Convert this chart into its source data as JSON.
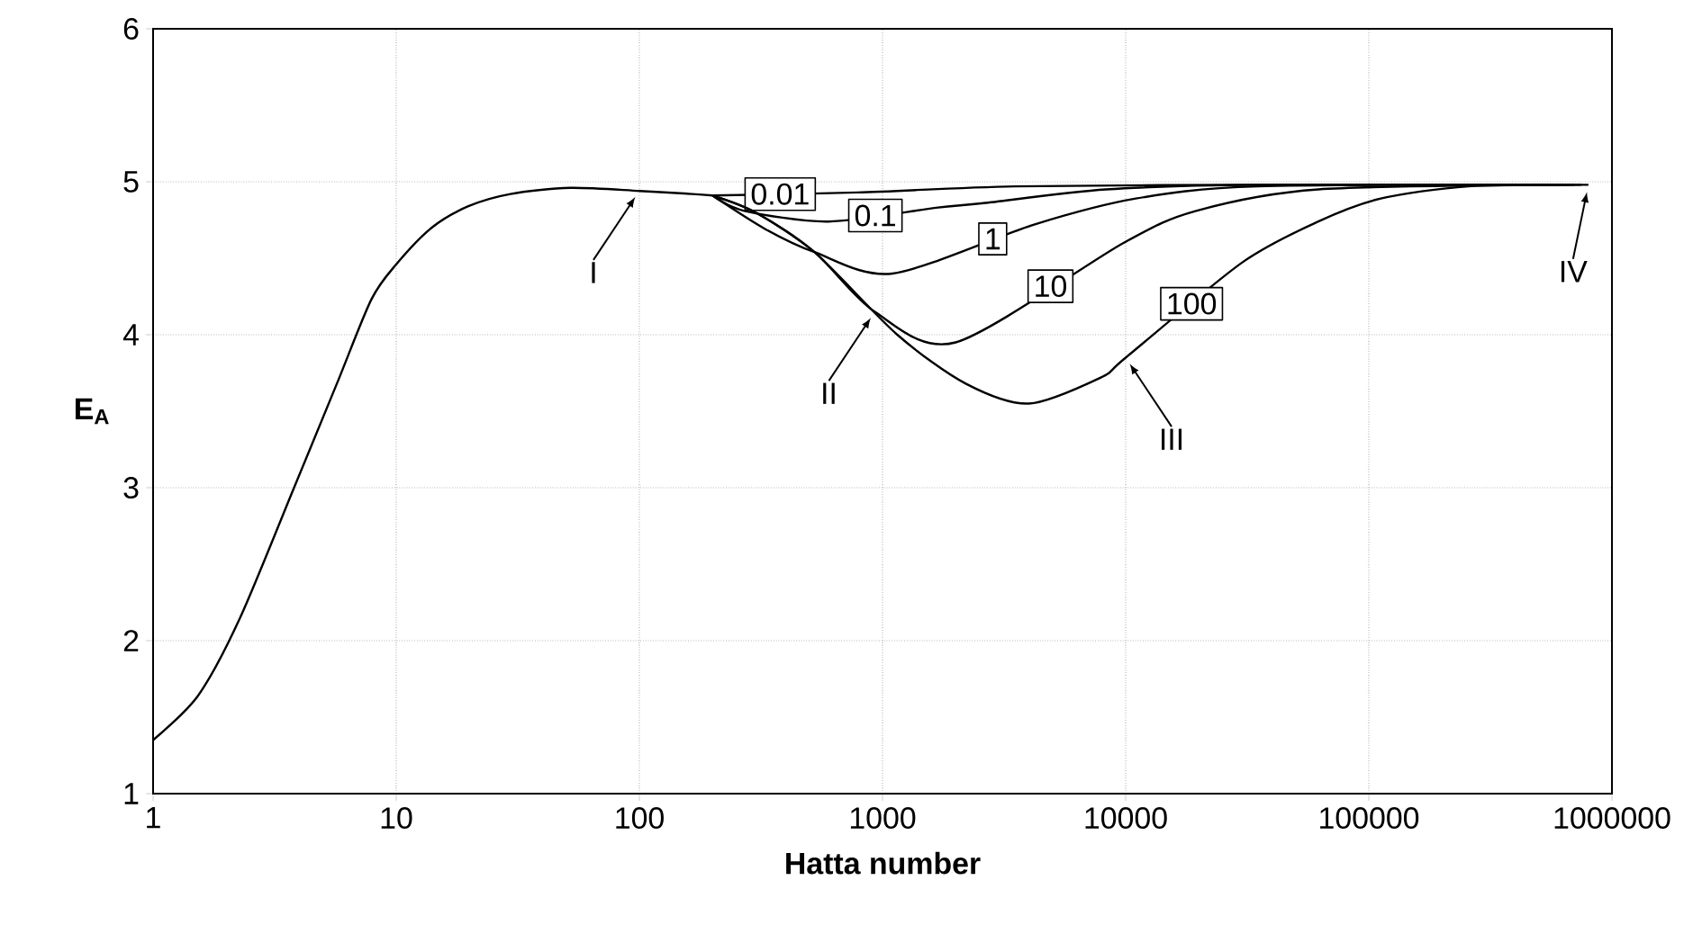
{
  "chart_data": {
    "type": "line",
    "xlabel": "**Hatta number**",
    "ylabel": "**E$_{A}$**",
    "log": "x",
    "grid": true,
    "marker": "none",
    "line_style": "solid",
    "xlim": [
      1,
      1000000
    ],
    "ylim": [
      1,
      6
    ],
    "xticks": [
      1,
      10,
      100,
      1000,
      10000,
      100000,
      1000000
    ],
    "yticks": [
      1,
      2,
      3,
      4,
      5,
      6
    ],
    "series": [
      {
        "color": "#000000",
        "x": [
          1,
          1.53,
          2.28,
          3.8,
          5.7,
          7.9,
          10,
          14,
          19.8,
          29.5,
          52,
          100,
          165,
          200
        ],
        "values": [
          1.35,
          1.64,
          2.15,
          3.0,
          3.68,
          4.23,
          4.46,
          4.7,
          4.84,
          4.92,
          4.96,
          4.94,
          4.92,
          4.91
        ]
      },
      {
        "name": "0.01",
        "color": "#000000",
        "x": [
          200,
          790,
          3500,
          30000,
          600000
        ],
        "values": [
          4.91,
          4.93,
          4.97,
          4.98,
          4.98
        ]
      },
      {
        "name": "0.1",
        "color": "#000000",
        "x": [
          200,
          270,
          600,
          1660,
          2600,
          8300,
          35000,
          650000
        ],
        "values": [
          4.91,
          4.81,
          4.74,
          4.83,
          4.86,
          4.95,
          4.98,
          4.98
        ]
      },
      {
        "name": "1",
        "color": "#000000",
        "x": [
          200,
          330,
          525,
          1100,
          4200,
          11000,
          35000,
          700000
        ],
        "values": [
          4.91,
          4.69,
          4.54,
          4.4,
          4.72,
          4.89,
          4.97,
          4.98
        ]
      },
      {
        "name": "10",
        "color": "#000000",
        "x": [
          200,
          300,
          525,
          930,
          2000,
          9800,
          19500,
          62000,
          750000
        ],
        "values": [
          4.91,
          4.8,
          4.54,
          4.15,
          3.95,
          4.6,
          4.81,
          4.95,
          4.98
        ]
      },
      {
        "name": "100",
        "color": "#000000",
        "x": [
          200,
          300,
          525,
          1150,
          2200,
          4000,
          7900,
          10000,
          30000,
          62000,
          112000,
          257000,
          800000
        ],
        "values": [
          4.91,
          4.8,
          4.54,
          4.0,
          3.68,
          3.55,
          3.72,
          3.85,
          4.47,
          4.74,
          4.89,
          4.97,
          4.98
        ]
      }
    ],
    "annotations": [
      {
        "text": "I",
        "x": 100,
        "y": 4.94
      },
      {
        "text": "II",
        "x": 930,
        "y": 4.15
      },
      {
        "text": "III",
        "x": 10000,
        "y": 3.85
      },
      {
        "text": "IV",
        "x": 800000,
        "y": 4.98
      }
    ]
  }
}
